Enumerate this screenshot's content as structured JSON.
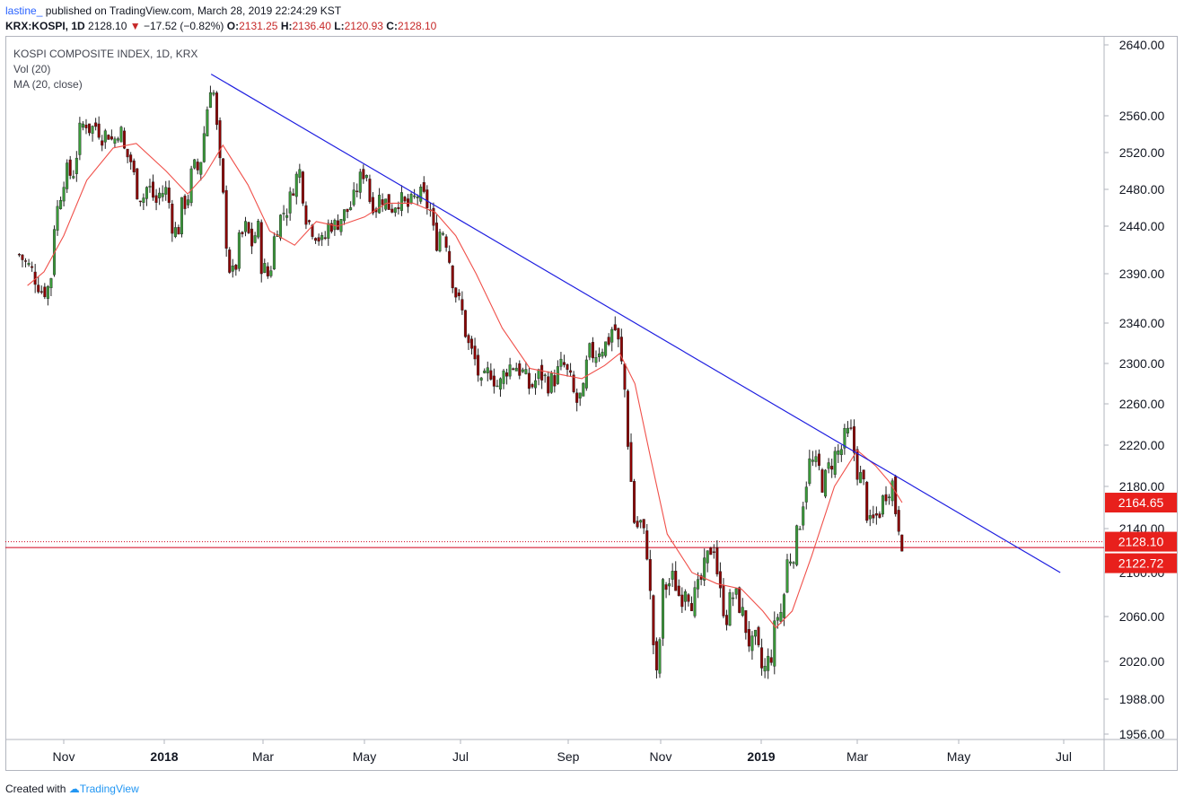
{
  "header": {
    "publisher": "lastine_",
    "published_text": "published on TradingView.com, March 28, 2019 22:24:29 KST",
    "symbol": "KRX:KOSPI, 1D",
    "last": "2128.10",
    "change": "−17.52 (−0.82%)",
    "open_label": "O:",
    "open": "2131.25",
    "high_label": "H:",
    "high": "2136.40",
    "low_label": "L:",
    "low": "2120.93",
    "close_label": "C:",
    "close": "2128.10"
  },
  "legend": {
    "title": "KOSPI COMPOSITE INDEX, 1D, KRX",
    "vol": "Vol (20)",
    "ma": "MA (20, close)"
  },
  "footer": {
    "created_with": "Created with",
    "brand": "TradingView"
  },
  "colors": {
    "up": "#26a69a",
    "up_fill": "#3a9a3a",
    "down": "#8b0000",
    "ma": "#f0504a",
    "trendline": "#1f1fe0",
    "price_label_bg": "#e8201c"
  },
  "chart_data": {
    "type": "candlestick",
    "title": "KOSPI COMPOSITE INDEX, 1D, KRX",
    "y_ticks": [
      1956,
      1988,
      2020,
      2060,
      2100,
      2140,
      2180,
      2220,
      2260,
      2300,
      2340,
      2390,
      2440,
      2480,
      2520,
      2560,
      2640
    ],
    "y_tick_labels": [
      "1956.00",
      "1988.00",
      "2020.00",
      "2060.00",
      "2100.00",
      "2140.00",
      "2180.00",
      "2220.00",
      "2260.00",
      "2300.00",
      "2340.00",
      "2390.00",
      "2440.00",
      "2480.00",
      "2520.00",
      "2560.00",
      "2640.00"
    ],
    "x_ticks": [
      {
        "label": "Nov",
        "bold": false,
        "date": "2017-11-01"
      },
      {
        "label": "2018",
        "bold": true,
        "date": "2018-01-01"
      },
      {
        "label": "Mar",
        "bold": false,
        "date": "2018-03-01"
      },
      {
        "label": "May",
        "bold": false,
        "date": "2018-05-01"
      },
      {
        "label": "Jul",
        "bold": false,
        "date": "2018-07-01"
      },
      {
        "label": "Sep",
        "bold": false,
        "date": "2018-09-01"
      },
      {
        "label": "Nov",
        "bold": false,
        "date": "2018-11-01"
      },
      {
        "label": "2019",
        "bold": true,
        "date": "2019-01-01"
      },
      {
        "label": "Mar",
        "bold": false,
        "date": "2019-03-01"
      },
      {
        "label": "May",
        "bold": false,
        "date": "2019-05-01"
      },
      {
        "label": "Jul",
        "bold": false,
        "date": "2019-07-01"
      }
    ],
    "x_range": [
      "2017-10-05",
      "2019-07-20"
    ],
    "price_labels": [
      {
        "value": 2164.65,
        "text": "2164.65",
        "kind": "ma"
      },
      {
        "value": 2128.1,
        "text": "2128.10",
        "kind": "close"
      },
      {
        "value": 2122.72,
        "text": "2122.72",
        "kind": "level"
      }
    ],
    "horizontal_lines": [
      {
        "value": 2128.1,
        "style": "dotted"
      },
      {
        "value": 2122.72,
        "style": "solid"
      }
    ],
    "trendline": {
      "from": {
        "date": "2018-01-29",
        "value": 2607
      },
      "to": {
        "date": "2019-06-29",
        "value": 2100
      }
    },
    "close_series": [
      [
        "2017-10-05",
        2410
      ],
      [
        "2017-10-12",
        2395
      ],
      [
        "2017-10-19",
        2372
      ],
      [
        "2017-10-24",
        2378
      ],
      [
        "2017-10-26",
        2440
      ],
      [
        "2017-10-30",
        2475
      ],
      [
        "2017-11-02",
        2500
      ],
      [
        "2017-11-06",
        2495
      ],
      [
        "2017-11-08",
        2505
      ],
      [
        "2017-11-10",
        2540
      ],
      [
        "2017-11-14",
        2555
      ],
      [
        "2017-11-17",
        2545
      ],
      [
        "2017-11-21",
        2550
      ],
      [
        "2017-11-24",
        2538
      ],
      [
        "2017-11-28",
        2542
      ],
      [
        "2017-12-01",
        2530
      ],
      [
        "2017-12-05",
        2550
      ],
      [
        "2017-12-08",
        2520
      ],
      [
        "2017-12-12",
        2510
      ],
      [
        "2017-12-15",
        2480
      ],
      [
        "2017-12-19",
        2470
      ],
      [
        "2017-12-22",
        2485
      ],
      [
        "2017-12-27",
        2465
      ],
      [
        "2017-12-29",
        2475
      ],
      [
        "2018-01-03",
        2480
      ],
      [
        "2018-01-05",
        2445
      ],
      [
        "2018-01-09",
        2430
      ],
      [
        "2018-01-11",
        2460
      ],
      [
        "2018-01-15",
        2470
      ],
      [
        "2018-01-18",
        2505
      ],
      [
        "2018-01-22",
        2500
      ],
      [
        "2018-01-24",
        2530
      ],
      [
        "2018-01-26",
        2560
      ],
      [
        "2018-01-29",
        2600
      ],
      [
        "2018-01-31",
        2580
      ],
      [
        "2018-02-02",
        2530
      ],
      [
        "2018-02-06",
        2455
      ],
      [
        "2018-02-08",
        2400
      ],
      [
        "2018-02-12",
        2385
      ],
      [
        "2018-02-14",
        2420
      ],
      [
        "2018-02-19",
        2440
      ],
      [
        "2018-02-22",
        2420
      ],
      [
        "2018-02-26",
        2440
      ],
      [
        "2018-02-28",
        2400
      ],
      [
        "2018-03-05",
        2385
      ],
      [
        "2018-03-07",
        2420
      ],
      [
        "2018-03-09",
        2440
      ],
      [
        "2018-03-13",
        2455
      ],
      [
        "2018-03-16",
        2460
      ],
      [
        "2018-03-20",
        2490
      ],
      [
        "2018-03-23",
        2500
      ],
      [
        "2018-03-27",
        2450
      ],
      [
        "2018-03-30",
        2440
      ],
      [
        "2018-04-03",
        2430
      ],
      [
        "2018-04-06",
        2420
      ],
      [
        "2018-04-10",
        2445
      ],
      [
        "2018-04-13",
        2440
      ],
      [
        "2018-04-17",
        2450
      ],
      [
        "2018-04-20",
        2455
      ],
      [
        "2018-04-24",
        2465
      ],
      [
        "2018-04-27",
        2485
      ],
      [
        "2018-05-02",
        2505
      ],
      [
        "2018-05-04",
        2470
      ],
      [
        "2018-05-09",
        2460
      ],
      [
        "2018-05-11",
        2475
      ],
      [
        "2018-05-15",
        2465
      ],
      [
        "2018-05-18",
        2460
      ],
      [
        "2018-05-23",
        2470
      ],
      [
        "2018-05-28",
        2460
      ],
      [
        "2018-05-31",
        2465
      ],
      [
        "2018-06-04",
        2475
      ],
      [
        "2018-06-08",
        2470
      ],
      [
        "2018-06-12",
        2455
      ],
      [
        "2018-06-15",
        2420
      ],
      [
        "2018-06-19",
        2440
      ],
      [
        "2018-06-22",
        2425
      ],
      [
        "2018-06-27",
        2375
      ],
      [
        "2018-07-02",
        2350
      ],
      [
        "2018-07-05",
        2320
      ],
      [
        "2018-07-10",
        2300
      ],
      [
        "2018-07-13",
        2275
      ],
      [
        "2018-07-18",
        2295
      ],
      [
        "2018-07-23",
        2275
      ],
      [
        "2018-07-27",
        2295
      ],
      [
        "2018-08-01",
        2300
      ],
      [
        "2018-08-06",
        2290
      ],
      [
        "2018-08-10",
        2275
      ],
      [
        "2018-08-16",
        2290
      ],
      [
        "2018-08-21",
        2280
      ],
      [
        "2018-08-24",
        2285
      ],
      [
        "2018-08-29",
        2300
      ],
      [
        "2018-09-03",
        2280
      ],
      [
        "2018-09-06",
        2260
      ],
      [
        "2018-09-11",
        2270
      ],
      [
        "2018-09-14",
        2310
      ],
      [
        "2018-09-19",
        2310
      ],
      [
        "2018-09-21",
        2315
      ],
      [
        "2018-09-27",
        2320
      ],
      [
        "2018-10-01",
        2340
      ],
      [
        "2018-10-04",
        2320
      ],
      [
        "2018-10-08",
        2280
      ],
      [
        "2018-10-11",
        2210
      ],
      [
        "2018-10-15",
        2140
      ],
      [
        "2018-10-19",
        2145
      ],
      [
        "2018-10-23",
        2120
      ],
      [
        "2018-10-25",
        2080
      ],
      [
        "2018-10-29",
        2000
      ],
      [
        "2018-10-31",
        2030
      ],
      [
        "2018-11-02",
        2085
      ],
      [
        "2018-11-06",
        2090
      ],
      [
        "2018-11-09",
        2095
      ],
      [
        "2018-11-13",
        2075
      ],
      [
        "2018-11-16",
        2090
      ],
      [
        "2018-11-20",
        2075
      ],
      [
        "2018-11-23",
        2080
      ],
      [
        "2018-11-28",
        2105
      ],
      [
        "2018-12-03",
        2130
      ],
      [
        "2018-12-05",
        2105
      ],
      [
        "2018-12-07",
        2080
      ],
      [
        "2018-12-11",
        2060
      ],
      [
        "2018-12-14",
        2080
      ],
      [
        "2018-12-18",
        2075
      ],
      [
        "2018-12-21",
        2060
      ],
      [
        "2018-12-26",
        2030
      ],
      [
        "2018-12-28",
        2040
      ],
      [
        "2019-01-02",
        2010
      ],
      [
        "2019-01-04",
        2015
      ],
      [
        "2019-01-08",
        2030
      ],
      [
        "2019-01-10",
        2060
      ],
      [
        "2019-01-14",
        2065
      ],
      [
        "2019-01-17",
        2110
      ],
      [
        "2019-01-21",
        2120
      ],
      [
        "2019-01-24",
        2140
      ],
      [
        "2019-01-28",
        2180
      ],
      [
        "2019-01-31",
        2205
      ],
      [
        "2019-02-06",
        2195
      ],
      [
        "2019-02-08",
        2180
      ],
      [
        "2019-02-12",
        2200
      ],
      [
        "2019-02-15",
        2210
      ],
      [
        "2019-02-19",
        2215
      ],
      [
        "2019-02-22",
        2230
      ],
      [
        "2019-02-26",
        2230
      ],
      [
        "2019-02-28",
        2200
      ],
      [
        "2019-03-05",
        2180
      ],
      [
        "2019-03-08",
        2140
      ],
      [
        "2019-03-12",
        2150
      ],
      [
        "2019-03-14",
        2155
      ],
      [
        "2019-03-18",
        2175
      ],
      [
        "2019-03-20",
        2180
      ],
      [
        "2019-03-22",
        2185
      ],
      [
        "2019-03-25",
        2145
      ],
      [
        "2019-03-27",
        2145
      ],
      [
        "2019-03-28",
        2128.1
      ]
    ],
    "ma_series": [
      [
        "2017-10-10",
        2378
      ],
      [
        "2017-10-20",
        2392
      ],
      [
        "2017-11-01",
        2430
      ],
      [
        "2017-11-15",
        2490
      ],
      [
        "2017-12-01",
        2525
      ],
      [
        "2017-12-15",
        2530
      ],
      [
        "2018-01-02",
        2500
      ],
      [
        "2018-01-15",
        2475
      ],
      [
        "2018-01-25",
        2495
      ],
      [
        "2018-02-05",
        2528
      ],
      [
        "2018-02-20",
        2485
      ],
      [
        "2018-03-05",
        2435
      ],
      [
        "2018-03-20",
        2420
      ],
      [
        "2018-04-02",
        2445
      ],
      [
        "2018-04-15",
        2440
      ],
      [
        "2018-05-01",
        2450
      ],
      [
        "2018-05-15",
        2465
      ],
      [
        "2018-06-01",
        2465
      ],
      [
        "2018-06-15",
        2455
      ],
      [
        "2018-06-28",
        2430
      ],
      [
        "2018-07-10",
        2390
      ],
      [
        "2018-07-25",
        2335
      ],
      [
        "2018-08-10",
        2295
      ],
      [
        "2018-08-25",
        2290
      ],
      [
        "2018-09-10",
        2285
      ],
      [
        "2018-09-25",
        2298
      ],
      [
        "2018-10-05",
        2310
      ],
      [
        "2018-10-15",
        2280
      ],
      [
        "2018-10-25",
        2210
      ],
      [
        "2018-11-05",
        2135
      ],
      [
        "2018-11-20",
        2100
      ],
      [
        "2018-12-05",
        2090
      ],
      [
        "2018-12-20",
        2085
      ],
      [
        "2019-01-02",
        2065
      ],
      [
        "2019-01-10",
        2050
      ],
      [
        "2019-01-20",
        2065
      ],
      [
        "2019-02-01",
        2115
      ],
      [
        "2019-02-15",
        2180
      ],
      [
        "2019-03-01",
        2215
      ],
      [
        "2019-03-12",
        2200
      ],
      [
        "2019-03-20",
        2185
      ],
      [
        "2019-03-28",
        2164.65
      ]
    ]
  }
}
